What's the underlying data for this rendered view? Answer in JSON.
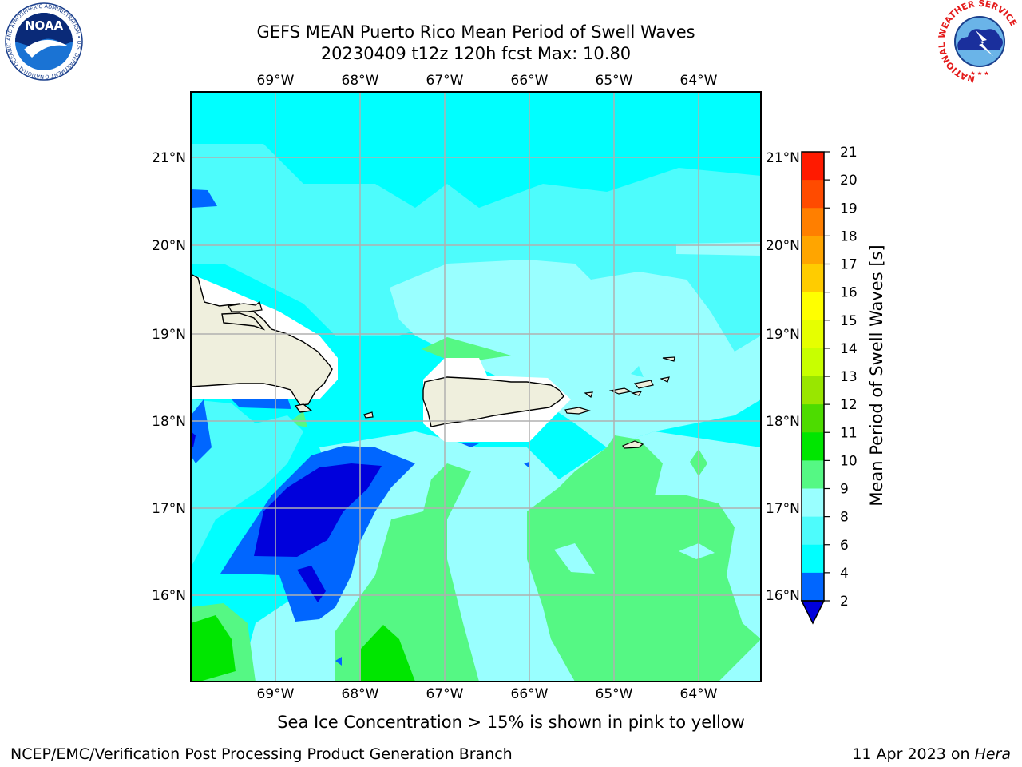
{
  "title": {
    "line1": "GEFS MEAN Puerto Rico Mean Period of Swell Waves",
    "line2": "20230409 t12z 120h fcst   Max: 10.80"
  },
  "map": {
    "lon_labels": [
      "69°W",
      "68°W",
      "67°W",
      "66°W",
      "65°W",
      "64°W"
    ],
    "lat_labels": [
      "21°N",
      "20°N",
      "19°N",
      "18°N",
      "17°N",
      "16°N"
    ]
  },
  "colorbar": {
    "label": "Mean Period of Swell Waves [s]",
    "ticks": [
      "21",
      "20",
      "19",
      "18",
      "17",
      "16",
      "15",
      "14",
      "13",
      "12",
      "11",
      "10",
      "9",
      "8",
      "6",
      "4",
      "2"
    ],
    "colors": [
      "#0000dc",
      "#0066ff",
      "#00ffff",
      "#4dfcfc",
      "#99ffff",
      "#55f884",
      "#00e600",
      "#4ddc00",
      "#99e600",
      "#c8ff00",
      "#e6ff00",
      "#ffff00",
      "#ffcc00",
      "#ffa500",
      "#ff7f00",
      "#ff4b00",
      "#ff1a00",
      "#ff0000"
    ]
  },
  "footer": {
    "note": "Sea Ice Concentration > 15% is shown in pink to yellow",
    "credit_left": "NCEP/EMC/Verification Post Processing Product Generation Branch",
    "date": "11 Apr 2023 on ",
    "host": "Hera"
  },
  "logos": {
    "noaa_text": "NOAA",
    "noaa_ring": "NATIONAL OCEANIC AND ATMOSPHERIC ADMINISTRATION • U.S. DEPARTMENT OF COMMERCE •",
    "nws_ring": "NATIONAL WEATHER SERVICE"
  }
}
